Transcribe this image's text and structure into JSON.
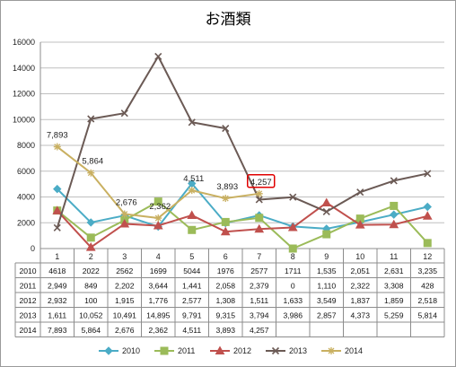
{
  "chart_data": {
    "type": "line",
    "title": "お酒類",
    "categories": [
      "1",
      "2",
      "3",
      "4",
      "5",
      "6",
      "7",
      "8",
      "9",
      "10",
      "11",
      "12"
    ],
    "ylim": [
      0,
      16000
    ],
    "yticks": [
      0,
      2000,
      4000,
      6000,
      8000,
      10000,
      12000,
      14000,
      16000
    ],
    "grid": true,
    "legend_position": "bottom",
    "series": [
      {
        "name": "2010",
        "color": "#4bacc6",
        "marker": "diamond",
        "values": [
          4618,
          2022,
          2562,
          1699,
          5044,
          1976,
          2577,
          1711,
          1535,
          2051,
          2631,
          3235
        ],
        "cells": [
          "4618",
          "2022",
          "2562",
          "1699",
          "5044",
          "1976",
          "2577",
          "1711",
          "1,535",
          "2,051",
          "2,631",
          "3,235"
        ]
      },
      {
        "name": "2011",
        "color": "#9bbb59",
        "marker": "square",
        "values": [
          2949,
          849,
          2202,
          3644,
          1441,
          2058,
          2379,
          0,
          1110,
          2322,
          3308,
          428
        ],
        "cells": [
          "2,949",
          "849",
          "2,202",
          "3,644",
          "1,441",
          "2,058",
          "2,379",
          "0",
          "1,110",
          "2,322",
          "3,308",
          "428"
        ]
      },
      {
        "name": "2012",
        "color": "#c0504d",
        "marker": "triangle",
        "values": [
          2932,
          100,
          1915,
          1776,
          2577,
          1308,
          1511,
          1633,
          3549,
          1837,
          1859,
          2518
        ],
        "cells": [
          "2,932",
          "100",
          "1,915",
          "1,776",
          "2,577",
          "1,308",
          "1,511",
          "1,633",
          "3,549",
          "1,837",
          "1,859",
          "2,518"
        ]
      },
      {
        "name": "2013",
        "color": "#6b5a55",
        "marker": "x",
        "values": [
          1611,
          10052,
          10491,
          14895,
          9791,
          9315,
          3794,
          3986,
          2857,
          4373,
          5259,
          5814
        ],
        "cells": [
          "1,611",
          "10,052",
          "10,491",
          "14,895",
          "9,791",
          "9,315",
          "3,794",
          "3,986",
          "2,857",
          "4,373",
          "5,259",
          "5,814"
        ]
      },
      {
        "name": "2014",
        "color": "#c9b061",
        "marker": "star",
        "values": [
          7893,
          5864,
          2676,
          2362,
          4511,
          3893,
          4257,
          null,
          null,
          null,
          null,
          null
        ],
        "cells": [
          "7,893",
          "5,864",
          "2,676",
          "2,362",
          "4,511",
          "3,893",
          "4,257",
          "",
          "",
          "",
          "",
          ""
        ]
      }
    ],
    "data_labels": [
      {
        "series": "2014",
        "index": 0,
        "text": "7,893"
      },
      {
        "series": "2014",
        "index": 1,
        "text": "5,864"
      },
      {
        "series": "2014",
        "index": 2,
        "text": "2,676"
      },
      {
        "series": "2014",
        "index": 3,
        "text": "2,362"
      },
      {
        "series": "2014",
        "index": 4,
        "text": "4,511"
      },
      {
        "series": "2014",
        "index": 5,
        "text": "3,893"
      },
      {
        "series": "2014",
        "index": 6,
        "text": "4,257",
        "highlight": "#e00000"
      }
    ]
  }
}
